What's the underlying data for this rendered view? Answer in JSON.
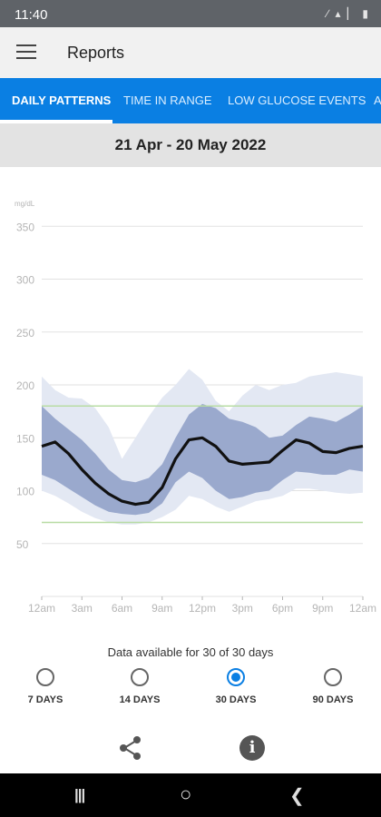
{
  "status": {
    "time": "11:40",
    "icons": "∕ ▴ ▏ ▮"
  },
  "header": {
    "title": "Reports"
  },
  "tabs": [
    {
      "label": "DAILY PATTERNS",
      "active": true
    },
    {
      "label": "TIME IN RANGE",
      "active": false
    },
    {
      "label": "LOW GLUCOSE EVENTS",
      "active": false
    },
    {
      "label": "A",
      "active": false
    }
  ],
  "date_range": "21 Apr - 20 May 2022",
  "chart_data": {
    "type": "line",
    "ylabel": "mg/dL",
    "y_ticks": [
      350,
      300,
      250,
      200,
      150,
      100,
      50
    ],
    "x_ticks": [
      "12am",
      "3am",
      "6am",
      "9am",
      "12pm",
      "3pm",
      "6pm",
      "9pm",
      "12am"
    ],
    "ylim": [
      0,
      370
    ],
    "target_range": [
      70,
      180
    ],
    "x": [
      0,
      1,
      2,
      3,
      4,
      5,
      6,
      7,
      8,
      9,
      10,
      11,
      12,
      13,
      14,
      15,
      16,
      17,
      18,
      19,
      20,
      21,
      22,
      23,
      24
    ],
    "series": [
      {
        "role": "outer_band_high",
        "values": [
          208,
          195,
          188,
          187,
          178,
          160,
          130,
          150,
          170,
          188,
          200,
          215,
          205,
          185,
          175,
          190,
          200,
          195,
          200,
          202,
          208,
          210,
          212,
          210,
          208
        ]
      },
      {
        "role": "inner_band_high",
        "values": [
          180,
          168,
          158,
          148,
          135,
          120,
          110,
          108,
          112,
          125,
          150,
          172,
          182,
          178,
          168,
          165,
          160,
          150,
          152,
          162,
          170,
          168,
          165,
          172,
          180
        ]
      },
      {
        "role": "median",
        "values": [
          142,
          146,
          135,
          120,
          107,
          97,
          90,
          87,
          89,
          103,
          130,
          148,
          150,
          142,
          128,
          125,
          126,
          127,
          138,
          148,
          145,
          137,
          136,
          140,
          142
        ]
      },
      {
        "role": "inner_band_low",
        "values": [
          115,
          110,
          102,
          94,
          86,
          80,
          78,
          77,
          79,
          88,
          108,
          118,
          112,
          100,
          92,
          94,
          98,
          100,
          110,
          118,
          117,
          115,
          115,
          120,
          118
        ]
      },
      {
        "role": "outer_band_low",
        "values": [
          100,
          95,
          88,
          80,
          74,
          70,
          68,
          68,
          70,
          75,
          82,
          95,
          92,
          85,
          80,
          85,
          90,
          92,
          95,
          102,
          102,
          100,
          98,
          97,
          98
        ]
      }
    ],
    "colors": {
      "outer": "#e3e8f3",
      "inner": "#9aa9cd",
      "median": "#111111",
      "target": "#b8dca4",
      "grid": "#e2e2e2",
      "tick": "#b5b5b5"
    },
    "grid": true
  },
  "availability": "Data available for 30 of 30 days",
  "ranges": [
    {
      "label": "7 DAYS",
      "checked": false
    },
    {
      "label": "14 DAYS",
      "checked": false
    },
    {
      "label": "30 DAYS",
      "checked": true
    },
    {
      "label": "90 DAYS",
      "checked": false
    }
  ],
  "actions": {
    "info_glyph": "i"
  },
  "navbar": {
    "recent": "|||",
    "home": "○",
    "back": "❮"
  },
  "colors": {
    "accent": "#0a7fe3",
    "statusbar": "#5f6368",
    "appbar": "#f1f1f1",
    "date_bg": "#e3e3e3"
  }
}
